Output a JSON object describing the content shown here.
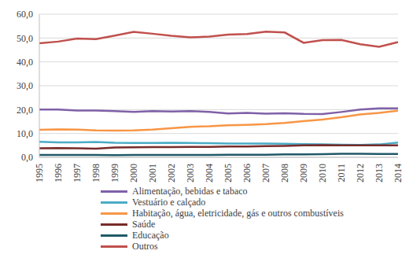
{
  "chart_data": {
    "type": "line",
    "x": [
      1995,
      1996,
      1997,
      1998,
      1999,
      2000,
      2001,
      2002,
      2003,
      2004,
      2005,
      2006,
      2007,
      2008,
      2009,
      2010,
      2011,
      2012,
      2013,
      2014
    ],
    "ylim": [
      0,
      60
    ],
    "yticks": [
      {
        "value": 0,
        "label": "0,0"
      },
      {
        "value": 10,
        "label": "10,0"
      },
      {
        "value": 20,
        "label": "20,0"
      },
      {
        "value": 30,
        "label": "30,0"
      },
      {
        "value": 40,
        "label": "40,0"
      },
      {
        "value": 50,
        "label": "50,0"
      },
      {
        "value": 60,
        "label": "60,0"
      }
    ],
    "grid": true,
    "legend": "bottom",
    "series": [
      {
        "name": "Alimentação, bebidas e tabaco",
        "color": "#7f60a8",
        "values": [
          20.0,
          20.0,
          19.6,
          19.6,
          19.4,
          19.0,
          19.4,
          19.2,
          19.4,
          19.0,
          18.4,
          18.6,
          18.3,
          18.5,
          18.2,
          18.1,
          19.0,
          20.0,
          20.5,
          20.5
        ]
      },
      {
        "name": "Vestuário e calçado",
        "color": "#4bacc6",
        "values": [
          6.5,
          6.3,
          6.3,
          6.4,
          6.1,
          6.0,
          6.0,
          6.1,
          6.0,
          5.9,
          5.8,
          5.8,
          5.8,
          5.7,
          5.5,
          5.4,
          5.3,
          5.2,
          5.4,
          6.2
        ]
      },
      {
        "name": "Habitação, água, eletricidade, gás e outros combustíveis",
        "color": "#f79646",
        "values": [
          11.5,
          11.7,
          11.6,
          11.3,
          11.2,
          11.3,
          11.6,
          12.2,
          12.8,
          13.0,
          13.4,
          13.6,
          13.9,
          14.4,
          15.2,
          15.8,
          16.8,
          18.0,
          18.6,
          19.5
        ]
      },
      {
        "name": "Saúde",
        "color": "#772c2a",
        "values": [
          3.8,
          3.9,
          3.8,
          3.6,
          4.1,
          4.2,
          4.3,
          4.3,
          4.4,
          4.4,
          4.5,
          4.5,
          4.7,
          4.8,
          5.0,
          5.1,
          5.0,
          5.0,
          5.0,
          5.0
        ]
      },
      {
        "name": "Educação",
        "color": "#215968",
        "values": [
          1.0,
          1.0,
          1.0,
          1.0,
          0.9,
          1.0,
          1.0,
          1.0,
          1.0,
          1.0,
          1.1,
          1.1,
          1.1,
          1.2,
          1.2,
          1.3,
          1.5,
          1.5,
          1.4,
          1.4
        ]
      },
      {
        "name": "Outros",
        "color": "#c0504d",
        "values": [
          47.8,
          48.5,
          49.8,
          49.5,
          51.0,
          52.6,
          51.8,
          50.9,
          50.3,
          50.6,
          51.4,
          51.7,
          52.7,
          52.3,
          48.0,
          49.1,
          49.2,
          47.4,
          46.3,
          48.3
        ]
      }
    ]
  }
}
